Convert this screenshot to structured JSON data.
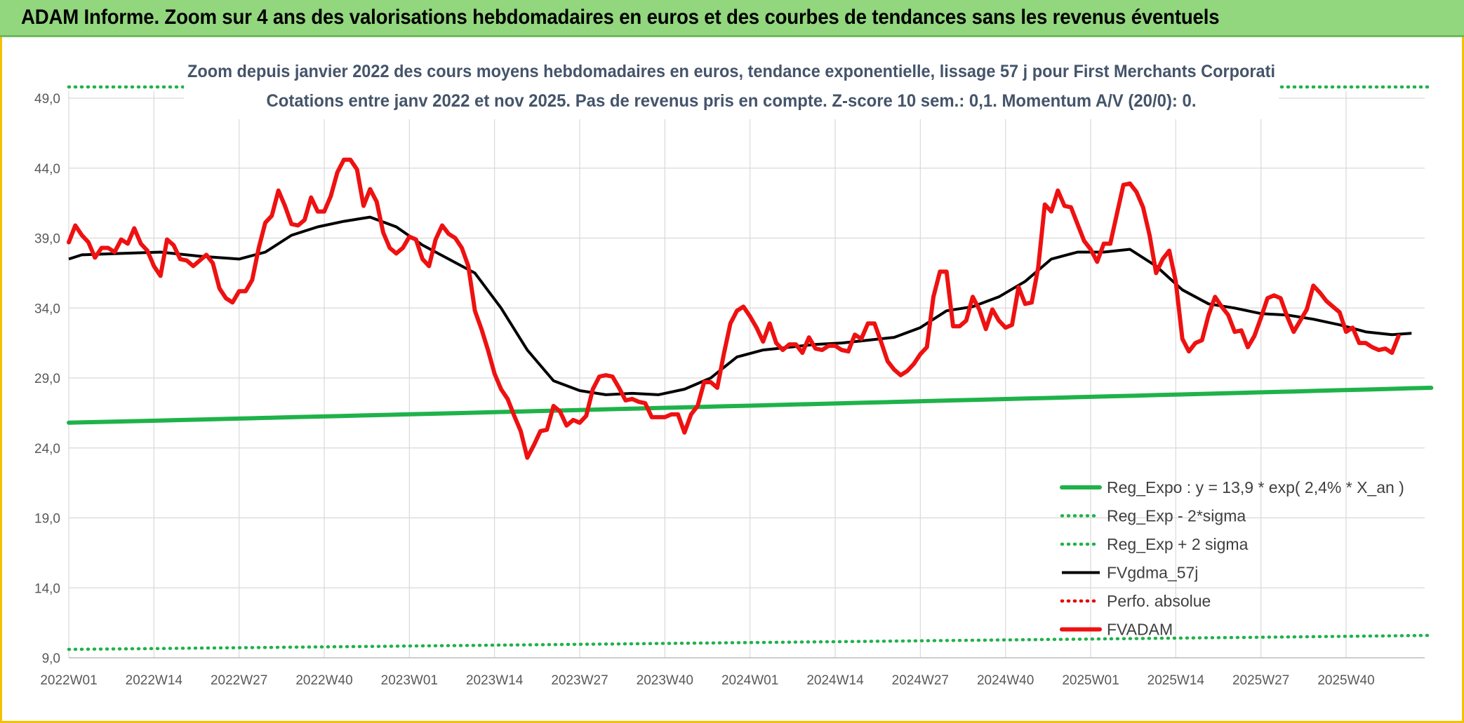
{
  "header": {
    "title": "ADAM Informe. Zoom sur 4 ans des valorisations hebdomadaires en euros et des courbes de tendances sans les revenus éventuels"
  },
  "chart_data": {
    "type": "line",
    "title": "Zoom depuis janvier 2022 des cours moyens hebdomadaires en euros, tendance exponentielle, lissage 57 j pour First Merchants Corporati",
    "subtitle": "Cotations entre janv 2022 et nov 2025. Pas de revenus pris en compte. Z-score 10 sem.: 0,1. Momentum A/V (20/0): 0.",
    "xlabel": "",
    "ylabel": "",
    "ylim": [
      9,
      49
    ],
    "yticks": [
      "9,0",
      "14,0",
      "19,0",
      "24,0",
      "29,0",
      "34,0",
      "39,0",
      "44,0",
      "49,0"
    ],
    "ytick_values": [
      9,
      14,
      19,
      24,
      29,
      34,
      39,
      44,
      49
    ],
    "xticks": [
      "2022W01",
      "2022W14",
      "2022W27",
      "2022W40",
      "2023W01",
      "2023W14",
      "2023W27",
      "2023W40",
      "2024W01",
      "2024W14",
      "2024W27",
      "2024W40",
      "2025W01",
      "2025W14",
      "2025W27",
      "2025W40"
    ],
    "xtick_index": [
      0,
      13,
      26,
      39,
      52,
      65,
      78,
      91,
      104,
      117,
      130,
      143,
      156,
      169,
      182,
      195
    ],
    "n_weeks": 208,
    "grid": true,
    "legend_position": "bottom-right",
    "colors": {
      "reg_expo": "#1fb24a",
      "sigma": "#1fb24a",
      "fvgdma": "#000000",
      "perfo": "#e00000",
      "fvadam": "#ee1111",
      "grid": "#d9d9d9",
      "tick_text": "#595959",
      "title_text": "#44546a"
    },
    "legend": [
      {
        "key": "reg_expo",
        "label": "Reg_Expo : y = 13,9 * exp( 2,4% *  X_an )",
        "style": "thick",
        "color": "#1fb24a"
      },
      {
        "key": "reg_minus",
        "label": "Reg_Exp - 2*sigma",
        "style": "dotted",
        "color": "#1fb24a"
      },
      {
        "key": "reg_plus",
        "label": "Reg_Exp + 2 sigma",
        "style": "dotted",
        "color": "#1fb24a"
      },
      {
        "key": "fvgdma",
        "label": "FVgdma_57j",
        "style": "solid",
        "color": "#000000"
      },
      {
        "key": "perfo",
        "label": "Perfo. absolue",
        "style": "dotted",
        "color": "#e00000"
      },
      {
        "key": "fvadam",
        "label": "FVADAM",
        "style": "thick",
        "color": "#ee1111"
      }
    ],
    "series": [
      {
        "name": "Reg_Expo : y = 13,9 * exp( 2,4% *  X_an )",
        "points": [
          [
            0,
            25.8
          ],
          [
            208,
            28.3
          ]
        ]
      },
      {
        "name": "Reg_Exp - 2*sigma",
        "points": [
          [
            0,
            9.6
          ],
          [
            208,
            10.6
          ]
        ]
      },
      {
        "name": "Reg_Exp + 2 sigma",
        "points": [
          [
            0,
            49.8
          ],
          [
            208,
            49.8
          ]
        ]
      },
      {
        "name": "FVgdma_57j",
        "points": [
          [
            0,
            37.5
          ],
          [
            2,
            37.8
          ],
          [
            8,
            37.9
          ],
          [
            14,
            38.0
          ],
          [
            20,
            37.7
          ],
          [
            26,
            37.5
          ],
          [
            30,
            38.0
          ],
          [
            34,
            39.2
          ],
          [
            38,
            39.8
          ],
          [
            42,
            40.2
          ],
          [
            46,
            40.5
          ],
          [
            50,
            39.8
          ],
          [
            54,
            38.5
          ],
          [
            58,
            37.5
          ],
          [
            62,
            36.5
          ],
          [
            66,
            34.0
          ],
          [
            70,
            31.0
          ],
          [
            74,
            28.8
          ],
          [
            78,
            28.1
          ],
          [
            82,
            27.8
          ],
          [
            86,
            27.9
          ],
          [
            90,
            27.8
          ],
          [
            94,
            28.2
          ],
          [
            98,
            29.0
          ],
          [
            102,
            30.5
          ],
          [
            106,
            31.0
          ],
          [
            110,
            31.2
          ],
          [
            114,
            31.4
          ],
          [
            118,
            31.5
          ],
          [
            122,
            31.7
          ],
          [
            126,
            31.9
          ],
          [
            130,
            32.6
          ],
          [
            134,
            33.8
          ],
          [
            138,
            34.1
          ],
          [
            142,
            34.8
          ],
          [
            146,
            35.9
          ],
          [
            150,
            37.5
          ],
          [
            154,
            38.0
          ],
          [
            158,
            38.0
          ],
          [
            162,
            38.2
          ],
          [
            166,
            37.0
          ],
          [
            170,
            35.3
          ],
          [
            174,
            34.3
          ],
          [
            178,
            34.0
          ],
          [
            182,
            33.6
          ],
          [
            186,
            33.5
          ],
          [
            190,
            33.2
          ],
          [
            194,
            32.8
          ],
          [
            198,
            32.3
          ],
          [
            202,
            32.1
          ],
          [
            205,
            32.2
          ]
        ]
      },
      {
        "name": "FVADAM",
        "points": [
          [
            0,
            38.7
          ],
          [
            1,
            39.9
          ],
          [
            2,
            39.2
          ],
          [
            3,
            38.7
          ],
          [
            4,
            37.6
          ],
          [
            5,
            38.3
          ],
          [
            6,
            38.3
          ],
          [
            7,
            38.0
          ],
          [
            8,
            38.9
          ],
          [
            9,
            38.6
          ],
          [
            10,
            39.7
          ],
          [
            11,
            38.6
          ],
          [
            12,
            38.1
          ],
          [
            13,
            37.0
          ],
          [
            14,
            36.3
          ],
          [
            15,
            38.9
          ],
          [
            16,
            38.5
          ],
          [
            17,
            37.5
          ],
          [
            18,
            37.4
          ],
          [
            19,
            37.0
          ],
          [
            20,
            37.4
          ],
          [
            21,
            37.8
          ],
          [
            22,
            37.2
          ],
          [
            23,
            35.4
          ],
          [
            24,
            34.7
          ],
          [
            25,
            34.4
          ],
          [
            26,
            35.2
          ],
          [
            27,
            35.2
          ],
          [
            28,
            36.0
          ],
          [
            29,
            38.3
          ],
          [
            30,
            40.1
          ],
          [
            31,
            40.6
          ],
          [
            32,
            42.4
          ],
          [
            33,
            41.3
          ],
          [
            34,
            40.0
          ],
          [
            35,
            39.9
          ],
          [
            36,
            40.3
          ],
          [
            37,
            41.9
          ],
          [
            38,
            40.9
          ],
          [
            39,
            40.9
          ],
          [
            40,
            42.0
          ],
          [
            41,
            43.7
          ],
          [
            42,
            44.6
          ],
          [
            43,
            44.6
          ],
          [
            44,
            43.9
          ],
          [
            45,
            41.3
          ],
          [
            46,
            42.5
          ],
          [
            47,
            41.6
          ],
          [
            48,
            39.4
          ],
          [
            49,
            38.3
          ],
          [
            50,
            37.9
          ],
          [
            51,
            38.3
          ],
          [
            52,
            39.1
          ],
          [
            53,
            38.9
          ],
          [
            54,
            37.5
          ],
          [
            55,
            37.0
          ],
          [
            56,
            38.9
          ],
          [
            57,
            39.9
          ],
          [
            58,
            39.3
          ],
          [
            59,
            39.0
          ],
          [
            60,
            38.3
          ],
          [
            61,
            37.0
          ],
          [
            62,
            33.8
          ],
          [
            63,
            32.5
          ],
          [
            64,
            31.0
          ],
          [
            65,
            29.3
          ],
          [
            66,
            28.2
          ],
          [
            67,
            27.5
          ],
          [
            68,
            26.3
          ],
          [
            69,
            25.2
          ],
          [
            70,
            23.3
          ],
          [
            71,
            24.2
          ],
          [
            72,
            25.2
          ],
          [
            73,
            25.3
          ],
          [
            74,
            27.0
          ],
          [
            75,
            26.6
          ],
          [
            76,
            25.6
          ],
          [
            77,
            26.0
          ],
          [
            78,
            25.8
          ],
          [
            79,
            26.3
          ],
          [
            80,
            28.2
          ],
          [
            81,
            29.1
          ],
          [
            82,
            29.2
          ],
          [
            83,
            29.1
          ],
          [
            84,
            28.3
          ],
          [
            85,
            27.4
          ],
          [
            86,
            27.5
          ],
          [
            87,
            27.3
          ],
          [
            88,
            27.2
          ],
          [
            89,
            26.2
          ],
          [
            90,
            26.2
          ],
          [
            91,
            26.2
          ],
          [
            92,
            26.4
          ],
          [
            93,
            26.4
          ],
          [
            94,
            25.1
          ],
          [
            95,
            26.4
          ],
          [
            96,
            27.0
          ],
          [
            97,
            28.7
          ],
          [
            98,
            28.7
          ],
          [
            99,
            28.3
          ],
          [
            100,
            30.7
          ],
          [
            101,
            32.9
          ],
          [
            102,
            33.8
          ],
          [
            103,
            34.1
          ],
          [
            104,
            33.4
          ],
          [
            105,
            32.6
          ],
          [
            106,
            31.6
          ],
          [
            107,
            32.9
          ],
          [
            108,
            31.5
          ],
          [
            109,
            31.0
          ],
          [
            110,
            31.4
          ],
          [
            111,
            31.4
          ],
          [
            112,
            30.8
          ],
          [
            113,
            31.9
          ],
          [
            114,
            31.1
          ],
          [
            115,
            31.0
          ],
          [
            116,
            31.3
          ],
          [
            117,
            31.3
          ],
          [
            118,
            31.0
          ],
          [
            119,
            30.9
          ],
          [
            120,
            32.1
          ],
          [
            121,
            31.8
          ],
          [
            122,
            32.9
          ],
          [
            123,
            32.9
          ],
          [
            124,
            31.6
          ],
          [
            125,
            30.2
          ],
          [
            126,
            29.6
          ],
          [
            127,
            29.2
          ],
          [
            128,
            29.5
          ],
          [
            129,
            30.0
          ],
          [
            130,
            30.7
          ],
          [
            131,
            31.2
          ],
          [
            132,
            34.8
          ],
          [
            133,
            36.6
          ],
          [
            134,
            36.6
          ],
          [
            135,
            32.7
          ],
          [
            136,
            32.7
          ],
          [
            137,
            33.1
          ],
          [
            138,
            34.8
          ],
          [
            139,
            33.9
          ],
          [
            140,
            32.5
          ],
          [
            141,
            33.9
          ],
          [
            142,
            33.1
          ],
          [
            143,
            32.6
          ],
          [
            144,
            32.8
          ],
          [
            145,
            35.5
          ],
          [
            146,
            34.3
          ],
          [
            147,
            34.4
          ],
          [
            148,
            36.9
          ],
          [
            149,
            41.4
          ],
          [
            150,
            40.9
          ],
          [
            151,
            42.4
          ],
          [
            152,
            41.3
          ],
          [
            153,
            41.2
          ],
          [
            154,
            40.0
          ],
          [
            155,
            38.8
          ],
          [
            156,
            38.2
          ],
          [
            157,
            37.3
          ],
          [
            158,
            38.6
          ],
          [
            159,
            38.6
          ],
          [
            160,
            40.7
          ],
          [
            161,
            42.8
          ],
          [
            162,
            42.9
          ],
          [
            163,
            42.3
          ],
          [
            164,
            41.2
          ],
          [
            165,
            39.2
          ],
          [
            166,
            36.5
          ],
          [
            167,
            37.5
          ],
          [
            168,
            38.1
          ],
          [
            169,
            35.9
          ],
          [
            170,
            31.8
          ],
          [
            171,
            30.9
          ],
          [
            172,
            31.5
          ],
          [
            173,
            31.7
          ],
          [
            174,
            33.5
          ],
          [
            175,
            34.8
          ],
          [
            176,
            34.1
          ],
          [
            177,
            33.5
          ],
          [
            178,
            32.3
          ],
          [
            179,
            32.4
          ],
          [
            180,
            31.2
          ],
          [
            181,
            32.0
          ],
          [
            182,
            33.3
          ],
          [
            183,
            34.7
          ],
          [
            184,
            34.9
          ],
          [
            185,
            34.7
          ],
          [
            186,
            33.4
          ],
          [
            187,
            32.3
          ],
          [
            188,
            33.1
          ],
          [
            189,
            33.9
          ],
          [
            190,
            35.6
          ],
          [
            191,
            35.1
          ],
          [
            192,
            34.5
          ],
          [
            193,
            34.1
          ],
          [
            194,
            33.7
          ],
          [
            195,
            32.3
          ],
          [
            196,
            32.6
          ],
          [
            197,
            31.5
          ],
          [
            198,
            31.5
          ],
          [
            199,
            31.2
          ],
          [
            200,
            31.0
          ],
          [
            201,
            31.1
          ],
          [
            202,
            30.8
          ],
          [
            203,
            32.0
          ]
        ]
      }
    ]
  }
}
